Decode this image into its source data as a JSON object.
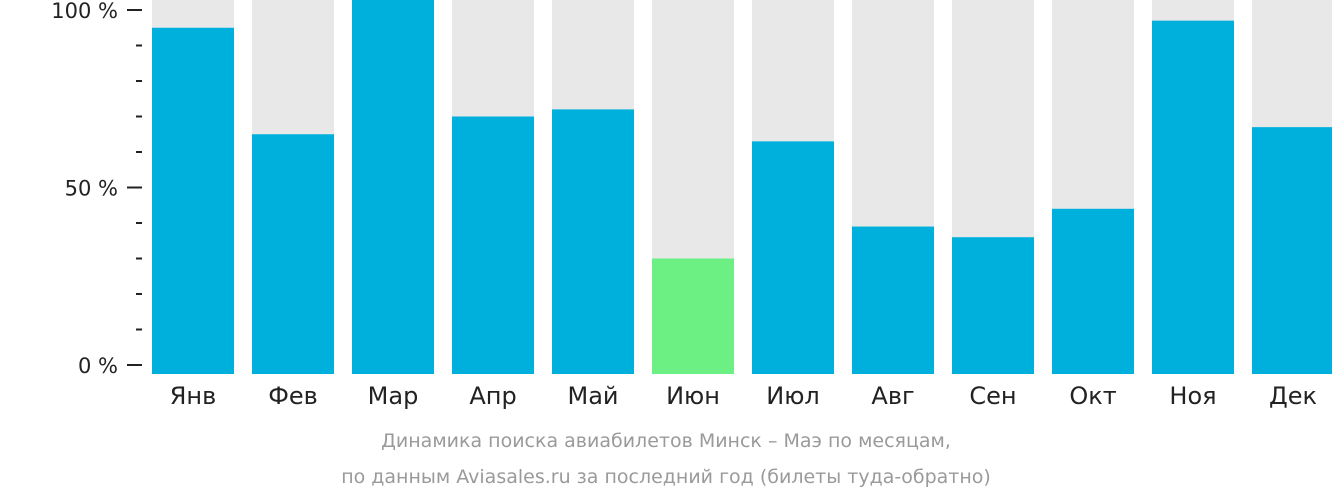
{
  "chart_data": {
    "type": "bar",
    "categories": [
      "Янв",
      "Фев",
      "Мар",
      "Апр",
      "Май",
      "Июн",
      "Июл",
      "Авг",
      "Сен",
      "Окт",
      "Ноя",
      "Дек"
    ],
    "values": [
      95,
      65,
      100,
      70,
      72,
      30,
      63,
      39,
      36,
      44,
      97,
      67
    ],
    "highlight_index": 5,
    "ylim": [
      0,
      100
    ],
    "y_ticks": [
      {
        "value": 100,
        "label": "100 %"
      },
      {
        "value": 50,
        "label": "50 %"
      },
      {
        "value": 0,
        "label": "0 %"
      }
    ],
    "minor_tick_step": 10,
    "colors": {
      "bar": "#00b0dc",
      "highlight": "#6cf083",
      "background_bar": "#e8e8e8",
      "axis": "#222222",
      "caption": "#9a9a9a"
    }
  },
  "caption": {
    "line1": "Динамика поиска авиабилетов Минск – Маэ по месяцам,",
    "line2": "по данным Aviasales.ru за последний год (билеты туда-обратно)"
  }
}
